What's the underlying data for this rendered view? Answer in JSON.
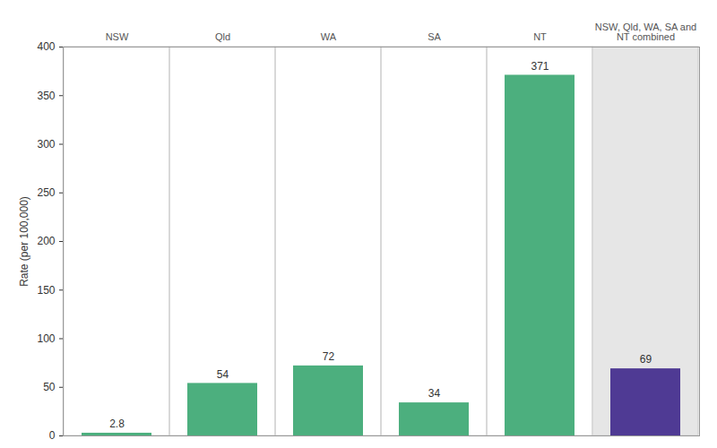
{
  "chart_data": {
    "type": "bar",
    "categories": [
      "NSW",
      "Qld",
      "WA",
      "SA",
      "NT",
      "NSW, Qld, WA, SA and NT combined"
    ],
    "values": [
      2.8,
      54,
      72,
      34,
      371,
      69
    ],
    "colors": [
      "#4caf7e",
      "#4caf7e",
      "#4caf7e",
      "#4caf7e",
      "#4caf7e",
      "#4f3a94"
    ],
    "y_label": "Rate (per 100,000)",
    "ylim": [
      0,
      400
    ],
    "yticks": [
      0,
      50,
      100,
      150,
      200,
      250,
      300,
      350,
      400
    ],
    "data_labels": true,
    "grid": false
  }
}
